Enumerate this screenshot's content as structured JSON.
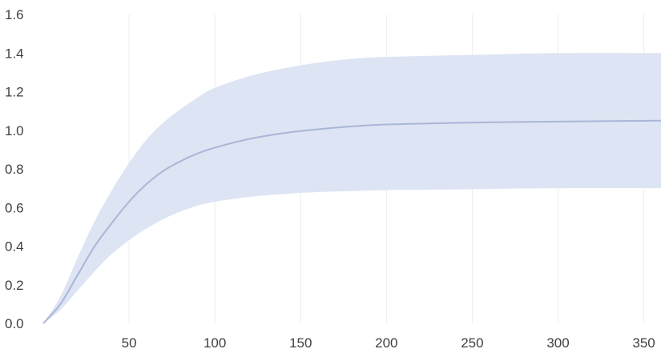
{
  "chart_data": {
    "type": "area",
    "title": "",
    "xlabel": "",
    "ylabel": "",
    "xlim": [
      0,
      360
    ],
    "ylim": [
      0,
      1.6
    ],
    "grid": true,
    "x_ticks": [
      50,
      100,
      150,
      200,
      250,
      300,
      350
    ],
    "y_ticks": [
      0.0,
      0.2,
      0.4,
      0.6,
      0.8,
      1.0,
      1.2,
      1.4,
      1.6
    ],
    "series": [
      {
        "kind": "band",
        "color": "#dde4f3",
        "x": [
          0,
          10,
          20,
          30,
          40,
          50,
          60,
          70,
          80,
          90,
          100,
          120,
          140,
          160,
          180,
          200,
          250,
          300,
          360
        ],
        "upper": [
          0,
          0.14,
          0.34,
          0.53,
          0.69,
          0.83,
          0.95,
          1.04,
          1.11,
          1.17,
          1.22,
          1.28,
          1.32,
          1.35,
          1.37,
          1.38,
          1.39,
          1.4,
          1.4
        ],
        "lower": [
          0,
          0.07,
          0.17,
          0.27,
          0.36,
          0.43,
          0.49,
          0.54,
          0.58,
          0.61,
          0.63,
          0.655,
          0.67,
          0.68,
          0.685,
          0.69,
          0.695,
          0.7,
          0.7
        ]
      },
      {
        "kind": "line",
        "color": "#a9b6d6",
        "x": [
          0,
          10,
          20,
          30,
          40,
          50,
          60,
          70,
          80,
          90,
          100,
          120,
          140,
          160,
          180,
          200,
          250,
          300,
          360
        ],
        "y": [
          0,
          0.1,
          0.25,
          0.4,
          0.52,
          0.63,
          0.72,
          0.79,
          0.84,
          0.88,
          0.91,
          0.955,
          0.985,
          1.005,
          1.02,
          1.03,
          1.04,
          1.045,
          1.05
        ]
      }
    ]
  }
}
